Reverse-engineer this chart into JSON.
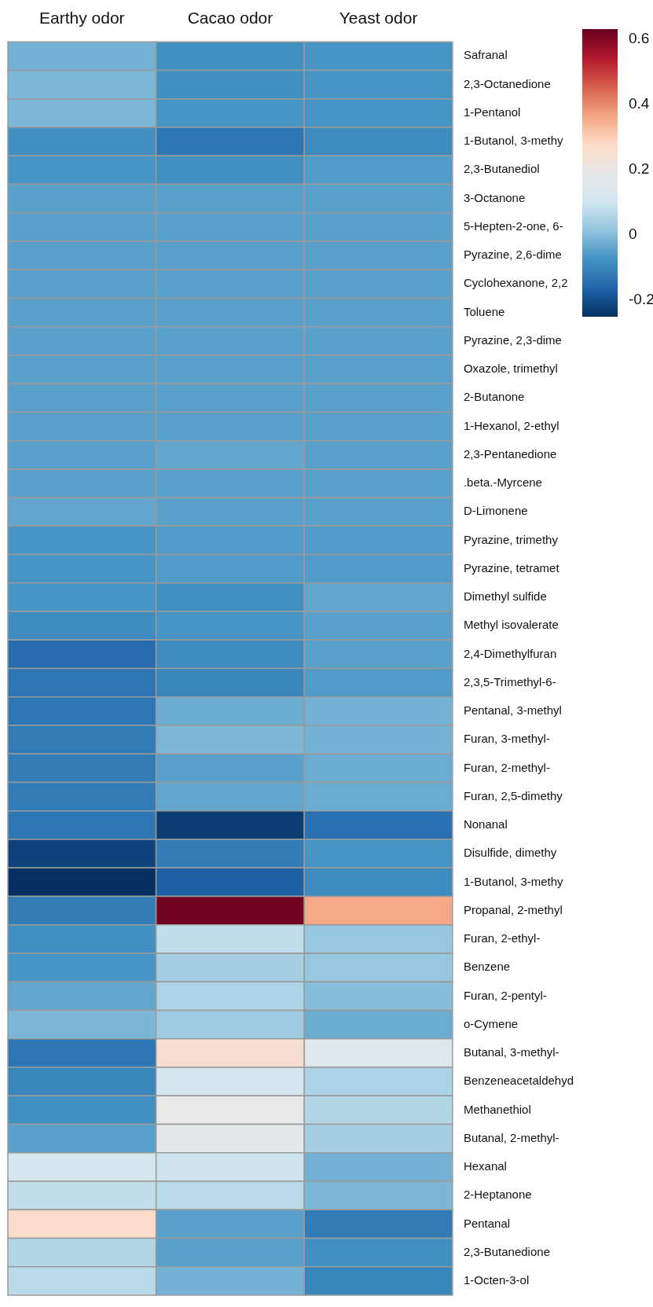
{
  "chart_data": {
    "type": "heatmap",
    "categories": [
      "Earthy odor",
      "Cacao odor",
      "Yeast odor"
    ],
    "y_categories": [
      "Safranal",
      "2,3-Octanedione",
      "1-Pentanol",
      "1-Butanol, 3-methy",
      "2,3-Butanediol",
      "3-Octanone",
      "5-Hepten-2-one, 6-",
      "Pyrazine, 2,6-dime",
      "Cyclohexanone, 2,2",
      "Toluene",
      "Pyrazine, 2,3-dime",
      "Oxazole, trimethyl",
      "2-Butanone",
      "1-Hexanol, 2-ethyl",
      "2,3-Pentanedione",
      ".beta.-Myrcene",
      "D-Limonene",
      "Pyrazine, trimethy",
      "Pyrazine, tetramet",
      "Dimethyl sulfide",
      "Methyl isovalerate",
      "2,4-Dimethylfuran",
      "2,3,5-Trimethyl-6-",
      "Pentanal, 3-methyl",
      "Furan, 3-methyl-",
      "Furan, 2-methyl-",
      "Furan, 2,5-dimethy",
      "Nonanal",
      "Disulfide, dimethy",
      "1-Butanol, 3-methy",
      "Propanal, 2-methyl",
      "Furan, 2-ethyl-",
      "Benzene",
      "Furan, 2-pentyl-",
      "o-Cymene",
      "Butanal, 3-methyl-",
      "Benzeneacetaldehyd",
      "Methanethiol",
      "Butanal, 2-methyl-",
      "Hexanal",
      "2-Heptanone",
      "Pentanal",
      "2,3-Butanedione",
      "1-Octen-3-ol"
    ],
    "cells": [
      [
        -0.02,
        -0.08,
        -0.07
      ],
      [
        -0.01,
        -0.08,
        -0.07
      ],
      [
        -0.01,
        -0.07,
        -0.07
      ],
      [
        -0.08,
        -0.13,
        -0.09
      ],
      [
        -0.07,
        -0.08,
        -0.06
      ],
      [
        -0.05,
        -0.05,
        -0.05
      ],
      [
        -0.05,
        -0.05,
        -0.05
      ],
      [
        -0.05,
        -0.05,
        -0.05
      ],
      [
        -0.05,
        -0.05,
        -0.05
      ],
      [
        -0.05,
        -0.05,
        -0.05
      ],
      [
        -0.05,
        -0.05,
        -0.05
      ],
      [
        -0.05,
        -0.05,
        -0.05
      ],
      [
        -0.05,
        -0.05,
        -0.05
      ],
      [
        -0.05,
        -0.05,
        -0.05
      ],
      [
        -0.05,
        -0.04,
        -0.05
      ],
      [
        -0.05,
        -0.05,
        -0.05
      ],
      [
        -0.04,
        -0.05,
        -0.05
      ],
      [
        -0.07,
        -0.06,
        -0.06
      ],
      [
        -0.07,
        -0.06,
        -0.06
      ],
      [
        -0.07,
        -0.08,
        -0.04
      ],
      [
        -0.09,
        -0.07,
        -0.05
      ],
      [
        -0.15,
        -0.09,
        -0.05
      ],
      [
        -0.13,
        -0.1,
        -0.06
      ],
      [
        -0.13,
        -0.03,
        -0.02
      ],
      [
        -0.12,
        -0.01,
        -0.02
      ],
      [
        -0.12,
        -0.05,
        -0.03
      ],
      [
        -0.12,
        -0.04,
        -0.03
      ],
      [
        -0.13,
        -0.23,
        -0.14
      ],
      [
        -0.22,
        -0.12,
        -0.07
      ],
      [
        -0.25,
        -0.17,
        -0.09
      ],
      [
        -0.12,
        0.62,
        0.36
      ],
      [
        -0.08,
        0.08,
        0.02
      ],
      [
        -0.07,
        0.04,
        0.02
      ],
      [
        -0.04,
        0.05,
        0.0
      ],
      [
        -0.01,
        0.03,
        -0.03
      ],
      [
        -0.13,
        0.25,
        0.15
      ],
      [
        -0.1,
        0.12,
        0.05
      ],
      [
        -0.08,
        0.19,
        0.06
      ],
      [
        -0.05,
        0.18,
        0.04
      ],
      [
        0.12,
        0.1,
        -0.02
      ],
      [
        0.08,
        0.07,
        -0.01
      ],
      [
        0.27,
        -0.05,
        -0.12
      ],
      [
        0.06,
        -0.05,
        -0.08
      ],
      [
        0.07,
        -0.02,
        -0.1
      ]
    ],
    "clim": [
      -0.25,
      0.63
    ],
    "cticks": [
      -0.2,
      0,
      0.2,
      0.4,
      0.6
    ]
  }
}
